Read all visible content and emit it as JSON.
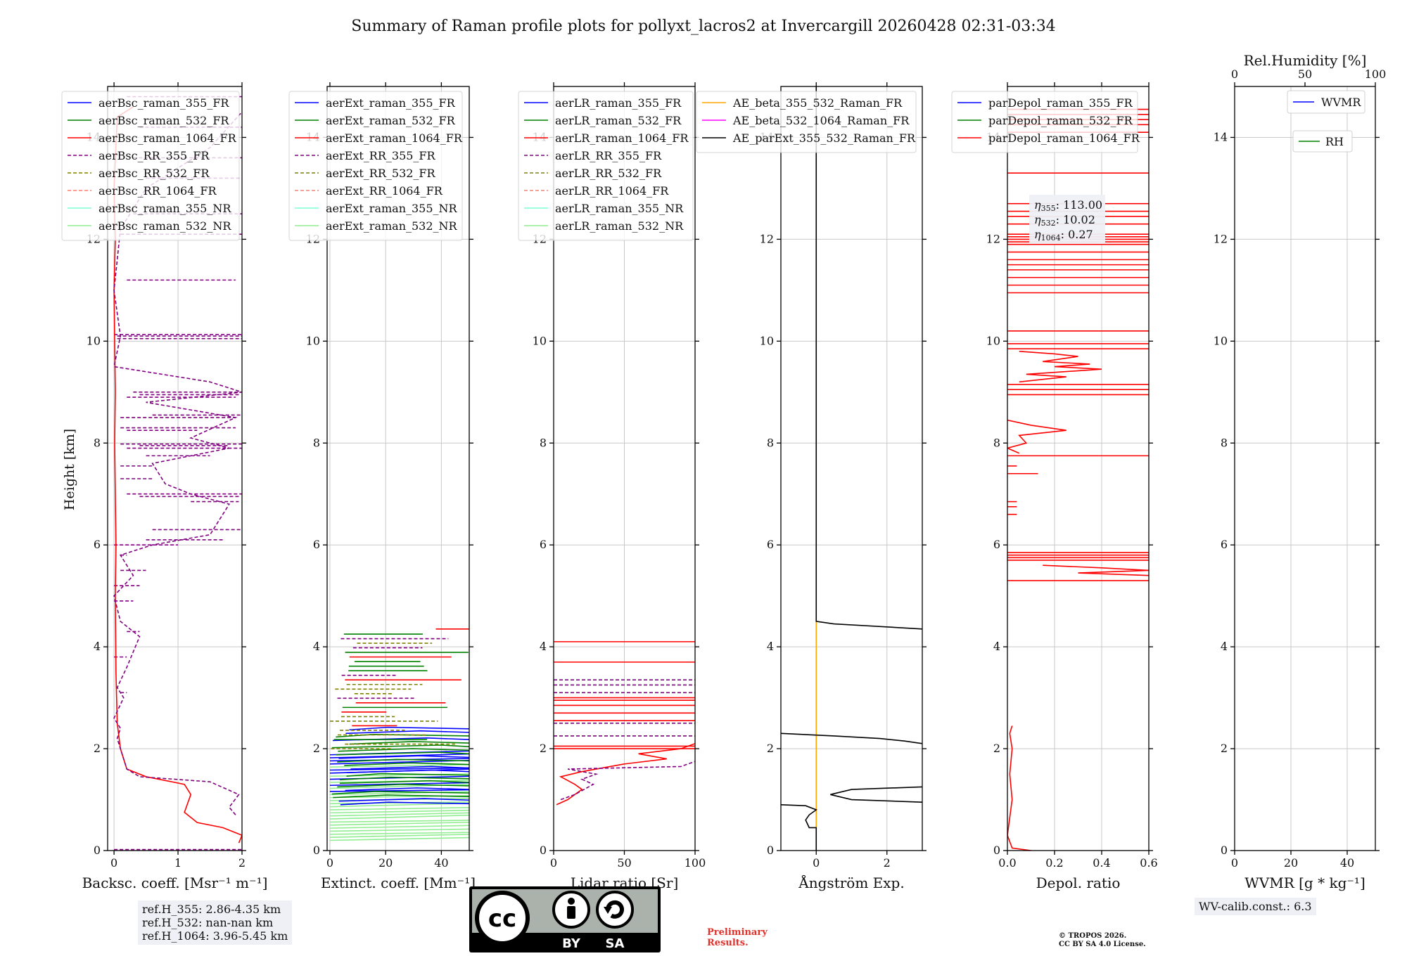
{
  "title": "Summary of Raman profile plots for pollyxt_lacros2 at Invercargill 20260428 02:31-03:34",
  "ylabel": "Height [km]",
  "chart_data": [
    {
      "type": "line",
      "id": "bsc",
      "xlabel": "Backsc. coeff. [Msr⁻¹ m⁻¹]",
      "xlim": [
        -0.1,
        2
      ],
      "ylim": [
        0,
        15
      ],
      "xticks": [
        0,
        1,
        2
      ],
      "xtick_labels": [
        "0",
        "1",
        "2"
      ],
      "yticks": [
        0,
        2,
        4,
        6,
        8,
        10,
        12,
        14
      ],
      "legend": [
        "aerBsc_raman_355_FR",
        "aerBsc_raman_532_FR",
        "aerBsc_raman_1064_FR",
        "aerBsc_RR_355_FR",
        "aerBsc_RR_532_FR",
        "aerBsc_RR_1064_FR",
        "aerBsc_raman_355_NR",
        "aerBsc_raman_532_NR"
      ],
      "series": [
        {
          "name": "aerBsc_raman_1064_FR",
          "color": "#ff0000",
          "style": "solid",
          "points": [
            [
              1.95,
              0.15
            ],
            [
              2.0,
              0.3
            ],
            [
              1.7,
              0.45
            ],
            [
              1.3,
              0.55
            ],
            [
              1.1,
              0.75
            ],
            [
              1.2,
              1.1
            ],
            [
              1.1,
              1.3
            ],
            [
              0.5,
              1.45
            ],
            [
              0.2,
              1.6
            ],
            [
              0.1,
              2.0
            ],
            [
              0.05,
              2.5
            ],
            [
              0.03,
              3.5
            ],
            [
              0.02,
              5
            ],
            [
              0.03,
              6
            ],
            [
              0.02,
              7
            ],
            [
              0.01,
              8
            ],
            [
              0.02,
              9
            ],
            [
              0.01,
              10
            ],
            [
              0.0,
              11
            ],
            [
              0.02,
              12
            ],
            [
              0.0,
              13
            ],
            [
              0.05,
              14.4
            ],
            [
              0.3,
              14.6
            ]
          ]
        },
        {
          "name": "aerBsc_RR_355_FR",
          "color": "#800080",
          "style": "dashed",
          "points": [
            [
              1.9,
              0.7
            ],
            [
              1.8,
              0.85
            ],
            [
              1.95,
              1.1
            ],
            [
              1.5,
              1.35
            ],
            [
              0.4,
              1.45
            ],
            [
              0.2,
              1.6
            ],
            [
              0.15,
              1.8
            ],
            [
              0.05,
              2.2
            ],
            [
              0.1,
              2.4
            ],
            [
              0.0,
              2.6
            ],
            [
              0.15,
              3.0
            ],
            [
              0.05,
              3.2
            ],
            [
              0.2,
              3.6
            ],
            [
              0.4,
              4.2
            ],
            [
              0.1,
              4.5
            ],
            [
              0.0,
              5.0
            ],
            [
              0.3,
              5.4
            ],
            [
              0.1,
              5.8
            ],
            [
              0.6,
              6.0
            ],
            [
              1.5,
              6.2
            ],
            [
              1.8,
              6.8
            ],
            [
              1.2,
              7.0
            ],
            [
              0.8,
              7.2
            ],
            [
              0.6,
              7.6
            ],
            [
              1.8,
              7.9
            ],
            [
              1.2,
              8.1
            ],
            [
              1.9,
              8.5
            ],
            [
              0.5,
              8.8
            ],
            [
              2.0,
              9.0
            ],
            [
              1.5,
              9.2
            ],
            [
              0.0,
              9.5
            ],
            [
              0.1,
              10.1
            ],
            [
              0.0,
              11
            ],
            [
              0.1,
              12.2
            ],
            [
              0.5,
              13
            ],
            [
              1.5,
              13.8
            ],
            [
              2.0,
              14.5
            ]
          ]
        }
      ],
      "spikes": [
        [
          0.05,
          2.0,
          10.05
        ],
        [
          0.05,
          2.0,
          10.1
        ],
        [
          0.0,
          2.0,
          10.13
        ],
        [
          0.3,
          2.0,
          9.0
        ],
        [
          0.4,
          1.95,
          8.95
        ],
        [
          0.2,
          1.9,
          8.9
        ],
        [
          0.6,
          2.0,
          8.55
        ],
        [
          0.1,
          1.9,
          8.5
        ],
        [
          0.1,
          1.9,
          8.3
        ],
        [
          0.2,
          1.3,
          8.25
        ],
        [
          0.1,
          2.0,
          7.98
        ],
        [
          0.4,
          1.8,
          7.95
        ],
        [
          0.2,
          2.0,
          7.9
        ],
        [
          0.5,
          1.5,
          7.75
        ],
        [
          0.1,
          0.6,
          7.55
        ],
        [
          0.1,
          0.6,
          7.3
        ],
        [
          0.2,
          2.0,
          7.0
        ],
        [
          0.4,
          1.95,
          6.95
        ],
        [
          1.2,
          1.95,
          6.85
        ],
        [
          0.6,
          2.0,
          6.3
        ],
        [
          0.5,
          1.7,
          6.1
        ],
        [
          0.0,
          1.0,
          6.0
        ],
        [
          0.1,
          0.2,
          5.8
        ],
        [
          0.1,
          0.5,
          5.5
        ],
        [
          0.0,
          0.4,
          5.2
        ],
        [
          0.0,
          0.3,
          4.9
        ],
        [
          0.2,
          0.4,
          4.3
        ],
        [
          0.0,
          0.2,
          3.8
        ],
        [
          0.1,
          0.2,
          3.1
        ],
        [
          0.2,
          2.0,
          14.8
        ],
        [
          0.4,
          2.0,
          14.2
        ],
        [
          0.3,
          2.0,
          13.6
        ],
        [
          0.5,
          2.0,
          13.2
        ],
        [
          0.3,
          2.0,
          12.5
        ],
        [
          0.1,
          2.0,
          12.1
        ],
        [
          0.2,
          1.9,
          11.2
        ]
      ]
    },
    {
      "type": "line",
      "id": "ext",
      "xlabel": "Extinct. coeff. [Mm⁻¹]",
      "xlim": [
        -1,
        50
      ],
      "ylim": [
        0,
        15
      ],
      "xticks": [
        0,
        20,
        40
      ],
      "xtick_labels": [
        "0",
        "20",
        "40"
      ],
      "yticks": [
        0,
        2,
        4,
        6,
        8,
        10,
        12,
        14
      ],
      "legend": [
        "aerExt_raman_355_FR",
        "aerExt_raman_532_FR",
        "aerExt_raman_1064_FR",
        "aerExt_RR_355_FR",
        "aerExt_RR_532_FR",
        "aerExt_RR_1064_FR",
        "aerExt_raman_355_NR",
        "aerExt_raman_532_NR"
      ]
    },
    {
      "type": "line",
      "id": "lr",
      "xlabel": "Lidar ratio [Sr]",
      "xlim": [
        0,
        100
      ],
      "ylim": [
        0,
        15
      ],
      "xticks": [
        0,
        50,
        100
      ],
      "xtick_labels": [
        "0",
        "50",
        "100"
      ],
      "yticks": [
        0,
        2,
        4,
        6,
        8,
        10,
        12,
        14
      ],
      "legend": [
        "aerLR_raman_355_FR",
        "aerLR_raman_532_FR",
        "aerLR_raman_1064_FR",
        "aerLR_RR_355_FR",
        "aerLR_RR_532_FR",
        "aerLR_RR_1064_FR",
        "aerLR_raman_355_NR",
        "aerLR_raman_532_NR"
      ],
      "series": [
        {
          "name": "aerLR_raman_1064_FR",
          "color": "#ff0000",
          "style": "solid",
          "points": [
            [
              2,
              0.9
            ],
            [
              10,
              1.0
            ],
            [
              15,
              1.1
            ],
            [
              20,
              1.2
            ],
            [
              15,
              1.3
            ],
            [
              5,
              1.45
            ],
            [
              20,
              1.55
            ],
            [
              50,
              1.7
            ],
            [
              80,
              1.8
            ],
            [
              60,
              1.9
            ],
            [
              90,
              2.0
            ],
            [
              100,
              2.1
            ]
          ]
        },
        {
          "name": "aerLR_RR_355_FR",
          "color": "#800080",
          "style": "dashed",
          "points": [
            [
              5,
              1.0
            ],
            [
              15,
              1.1
            ],
            [
              28,
              1.3
            ],
            [
              20,
              1.4
            ],
            [
              30,
              1.5
            ],
            [
              10,
              1.6
            ],
            [
              90,
              1.65
            ],
            [
              100,
              1.75
            ]
          ]
        }
      ]
    },
    {
      "type": "line",
      "id": "ae",
      "xlabel": "Ångström Exp.",
      "xlim": [
        -1,
        3
      ],
      "ylim": [
        0,
        15
      ],
      "xticks": [
        0,
        2
      ],
      "xtick_labels": [
        "0",
        "2"
      ],
      "yticks": [
        0,
        2,
        4,
        6,
        8,
        10,
        12,
        14
      ],
      "legend": [
        "AE_beta_355_532_Raman_FR",
        "AE_beta_532_1064_Raman_FR",
        "AE_parExt_355_532_Raman_FR"
      ],
      "series": [
        {
          "name": "AE_beta_355_532_Raman_FR",
          "color": "#ffa500",
          "style": "solid",
          "points": [
            [
              0,
              0
            ],
            [
              0,
              4.5
            ]
          ]
        },
        {
          "name": "AE_parExt_355_532_Raman_FR",
          "color": "#000000",
          "style": "solid",
          "points": [
            [
              0,
              15
            ],
            [
              0,
              4.5
            ],
            [
              0.5,
              4.45
            ],
            [
              3,
              4.35
            ]
          ]
        },
        {
          "name": "AE_parExt_355_532_Raman_FR",
          "color": "#000000",
          "style": "solid",
          "points": [
            [
              -1,
              2.3
            ],
            [
              0.5,
              2.25
            ],
            [
              1.8,
              2.2
            ],
            [
              2.5,
              2.15
            ],
            [
              3,
              2.1
            ]
          ]
        },
        {
          "name": "AE_parExt_355_532_Raman_FR",
          "color": "#000000",
          "style": "solid",
          "points": [
            [
              3,
              1.25
            ],
            [
              1,
              1.2
            ],
            [
              0.4,
              1.1
            ],
            [
              1,
              1.0
            ],
            [
              3,
              0.95
            ]
          ]
        },
        {
          "name": "AE_parExt_355_532_Raman_FR",
          "color": "#000000",
          "style": "solid",
          "points": [
            [
              -1,
              0.9
            ],
            [
              -0.3,
              0.88
            ],
            [
              0,
              0.8
            ],
            [
              -0.2,
              0.7
            ],
            [
              -0.3,
              0.6
            ],
            [
              -0.2,
              0.45
            ],
            [
              0,
              0.45
            ],
            [
              0,
              0
            ]
          ]
        }
      ]
    },
    {
      "type": "line",
      "id": "dep",
      "xlabel": "Depol. ratio",
      "xlim": [
        0,
        0.6
      ],
      "ylim": [
        0,
        15
      ],
      "xticks": [
        0,
        0.2,
        0.4,
        0.6
      ],
      "xtick_labels": [
        "0.0",
        "0.2",
        "0.4",
        "0.6"
      ],
      "yticks": [
        0,
        2,
        4,
        6,
        8,
        10,
        12,
        14
      ],
      "legend": [
        "parDepol_raman_355_FR",
        "parDepol_raman_532_FR",
        "parDepol_raman_1064_FR"
      ],
      "eta": [
        "113.00",
        "10.02",
        "0.27"
      ],
      "series": [
        {
          "name": "parDepol_raman_1064_FR",
          "color": "#ff0000",
          "style": "solid",
          "points": [
            [
              0.1,
              0
            ],
            [
              0.02,
              0.05
            ],
            [
              0.0,
              0.3
            ],
            [
              0.02,
              1.0
            ],
            [
              0.01,
              1.5
            ],
            [
              0.02,
              2.0
            ],
            [
              0.01,
              2.3
            ],
            [
              0.02,
              2.45
            ]
          ]
        }
      ],
      "hlines": [
        14.55,
        14.45,
        14.35,
        14.25,
        14.1,
        13.3,
        12.7,
        12.55,
        12.45,
        12.3,
        12.1,
        12.05,
        12.0,
        11.95,
        11.9,
        11.75,
        11.6,
        11.5,
        11.4,
        11.25,
        11.1,
        10.95,
        10.2,
        9.95,
        9.85,
        9.15,
        9.05,
        8.95,
        7.75,
        5.85,
        5.8,
        5.75,
        5.7,
        5.3
      ]
    },
    {
      "type": "line",
      "id": "wv",
      "xlabel": "WVMR [g * kg⁻¹]",
      "xlim": [
        0,
        50
      ],
      "ylim": [
        0,
        15
      ],
      "xticks": [
        0,
        20,
        40
      ],
      "xtick_labels": [
        "0",
        "20",
        "40"
      ],
      "yticks": [
        0,
        2,
        4,
        6,
        8,
        10,
        12,
        14
      ],
      "top_label": "Rel.Humidity [%]",
      "top_ticks": [
        0,
        50,
        100
      ],
      "top_tick_labels": [
        "0",
        "50",
        "100"
      ],
      "legend": [
        "WVMR",
        "RH"
      ]
    }
  ],
  "annotations": {
    "refh": [
      "ref.H_355: 2.86-4.35 km",
      "ref.H_532: nan-nan km",
      "ref.H_1064: 3.96-5.45 km"
    ],
    "wv_calib": "WV-calib.const.: 6.3",
    "preliminary": [
      "Preliminary",
      "Results."
    ],
    "copyright": [
      "© TROPOS 2026.",
      "CC BY SA 4.0 License."
    ],
    "license_badge": [
      "BY",
      "SA"
    ]
  },
  "colors": {
    "raman_355": "#0000ff",
    "raman_532": "#008000",
    "raman_1064": "#ff0000",
    "rr_355": "#800080",
    "rr_532": "#808000",
    "rr_1064": "#fa8072",
    "nr_355": "#7fffd4",
    "nr_532": "#90ee90",
    "ae_355_532": "#ffa500",
    "ae_532_1064": "#ff00ff",
    "ae_par": "#000000"
  }
}
